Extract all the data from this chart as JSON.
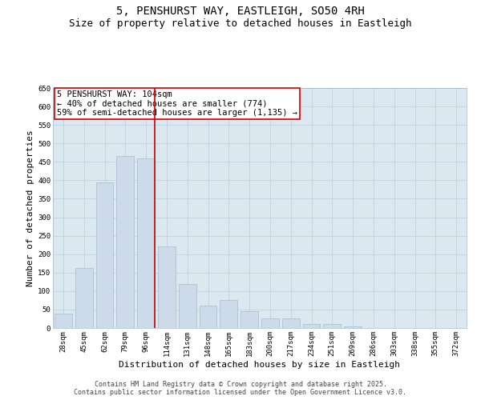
{
  "title_line1": "5, PENSHURST WAY, EASTLEIGH, SO50 4RH",
  "title_line2": "Size of property relative to detached houses in Eastleigh",
  "xlabel": "Distribution of detached houses by size in Eastleigh",
  "ylabel": "Number of detached properties",
  "bar_labels": [
    "28sqm",
    "45sqm",
    "62sqm",
    "79sqm",
    "96sqm",
    "114sqm",
    "131sqm",
    "148sqm",
    "165sqm",
    "183sqm",
    "200sqm",
    "217sqm",
    "234sqm",
    "251sqm",
    "269sqm",
    "286sqm",
    "303sqm",
    "338sqm",
    "355sqm",
    "372sqm"
  ],
  "bar_values": [
    40,
    162,
    395,
    465,
    460,
    220,
    120,
    60,
    75,
    45,
    25,
    25,
    10,
    10,
    5,
    0,
    0,
    0,
    0,
    0
  ],
  "bar_color": "#ccdaea",
  "bar_edge_color": "#aabcce",
  "grid_color": "#c5d5e5",
  "background_color": "#ffffff",
  "axes_bg_color": "#dce8f0",
  "vline_x_index": 4.44,
  "vline_color": "#cc0000",
  "annotation_text": "5 PENSHURST WAY: 104sqm\n← 40% of detached houses are smaller (774)\n59% of semi-detached houses are larger (1,135) →",
  "annotation_box_color": "#ffffff",
  "annotation_box_edge": "#cc0000",
  "ylim": [
    0,
    650
  ],
  "ytick_interval": 50,
  "footer_line1": "Contains HM Land Registry data © Crown copyright and database right 2025.",
  "footer_line2": "Contains public sector information licensed under the Open Government Licence v3.0.",
  "title_fontsize": 10,
  "subtitle_fontsize": 9,
  "axis_label_fontsize": 8,
  "tick_fontsize": 6.5,
  "annotation_fontsize": 7.5,
  "footer_fontsize": 6
}
